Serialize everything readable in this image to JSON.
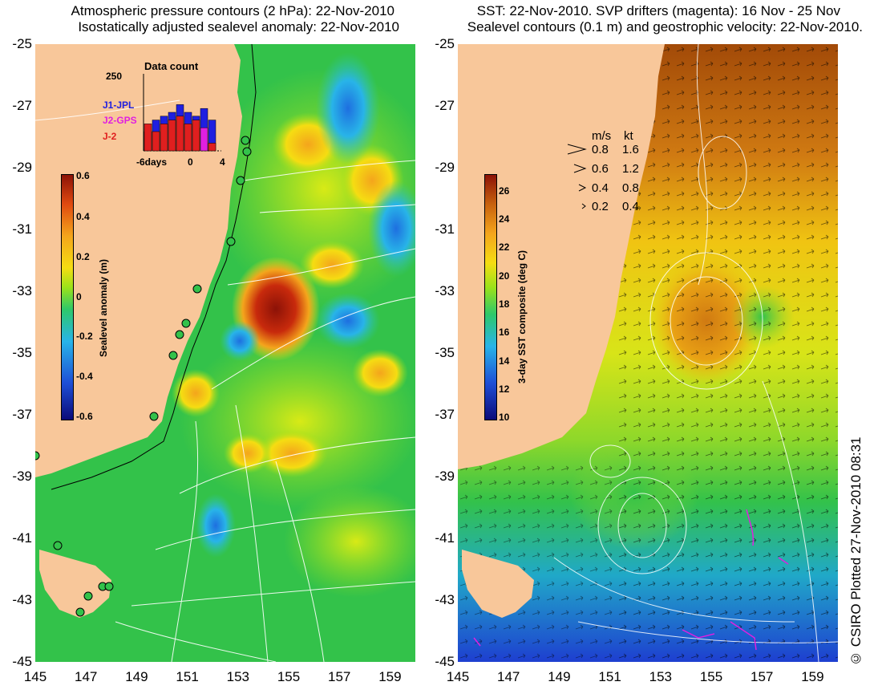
{
  "left_panel": {
    "title_line1": "Atmospheric pressure contours (2 hPa): 22-Nov-2010",
    "title_line2": "Isostatically adjusted sealevel anomaly: 22-Nov-2010",
    "colorbar": {
      "label": "Sealevel anomaly (m)",
      "ticks": [
        "0.6",
        "0.4",
        "0.2",
        "0",
        "-0.2",
        "-0.4",
        "-0.6"
      ],
      "range": [
        -0.6,
        0.6
      ],
      "colors": [
        "#0b0b7a",
        "#1e4fd6",
        "#28b4e8",
        "#2ec86a",
        "#9be21a",
        "#f5dd12",
        "#f4a51c",
        "#e04a10",
        "#8c1207"
      ]
    },
    "inset": {
      "title": "Data count",
      "ymax_label": "250",
      "x_ticks": [
        "-6days",
        "0",
        "4"
      ],
      "legend": [
        {
          "label": "J1-JPL",
          "color": "#1f1fe0"
        },
        {
          "label": "J2-GPS",
          "color": "#e01fe0"
        },
        {
          "label": "J-2",
          "color": "#e01f1f"
        }
      ],
      "bars": [
        {
          "blue": 0.25,
          "red": 0.35
        },
        {
          "blue": 0.4,
          "red": 0.25
        },
        {
          "blue": 0.45,
          "red": 0.35
        },
        {
          "blue": 0.5,
          "red": 0.4
        },
        {
          "blue": 0.6,
          "red": 0.45
        },
        {
          "blue": 0.5,
          "red": 0.35
        },
        {
          "blue": 0.45,
          "red": 0.4
        },
        {
          "blue": 0.55,
          "red": 0.3
        },
        {
          "blue": 0.4,
          "red": 0.1
        }
      ]
    }
  },
  "right_panel": {
    "title_line1": "SST: 22-Nov-2010. SVP drifters (magenta): 16 Nov - 25 Nov",
    "title_line2": "Sealevel contours (0.1 m) and geostrophic velocity: 22-Nov-2010.",
    "colorbar": {
      "label": "3-day SST composite (deg C)",
      "ticks": [
        "26",
        "24",
        "22",
        "20",
        "18",
        "16",
        "14",
        "12",
        "10"
      ],
      "range": [
        10,
        27
      ],
      "colors": [
        "#0b0b7a",
        "#1e4fd6",
        "#28b4e8",
        "#2ec86a",
        "#9be21a",
        "#f5dd12",
        "#f4a51c",
        "#c8620e",
        "#8c1207"
      ]
    },
    "velocity_legend": {
      "header_ms": "m/s",
      "header_kt": "kt",
      "rows": [
        {
          "ms": "0.8",
          "kt": "1.6"
        },
        {
          "ms": "0.6",
          "kt": "1.2"
        },
        {
          "ms": "0.4",
          "kt": "0.8"
        },
        {
          "ms": "0.2",
          "kt": "0.4"
        }
      ]
    }
  },
  "axes": {
    "y_ticks": [
      "-25",
      "-27",
      "-29",
      "-31",
      "-33",
      "-35",
      "-37",
      "-39",
      "-41",
      "-43",
      "-45"
    ],
    "x_ticks": [
      "145",
      "147",
      "149",
      "151",
      "153",
      "155",
      "157",
      "159"
    ],
    "lat_range": [
      -45,
      -25
    ],
    "lon_range": [
      145,
      160
    ]
  },
  "colors": {
    "land": "#f8c79a",
    "sea_base_left": "#33c24a",
    "sea_base_right": "#b8d82a"
  },
  "copyright": "© CSIRO Plotted 27-Nov-2010 08:31"
}
